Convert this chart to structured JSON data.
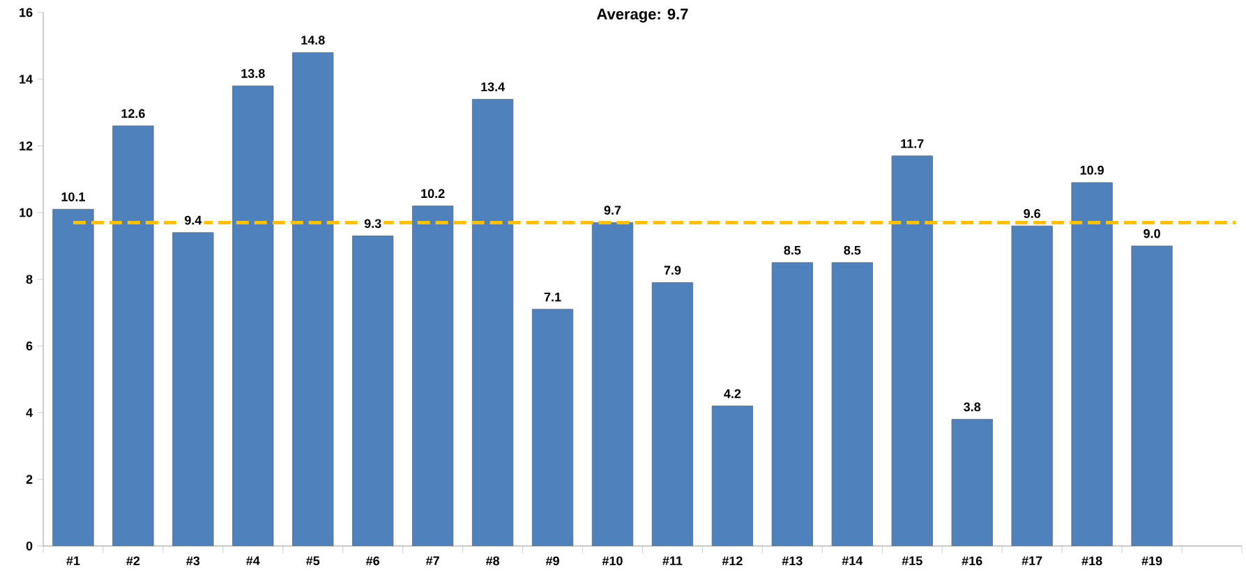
{
  "chart_data": {
    "type": "bar",
    "title": "Average: 9.7",
    "categories": [
      "#1",
      "#2",
      "#3",
      "#4",
      "#5",
      "#6",
      "#7",
      "#8",
      "#9",
      "#10",
      "#11",
      "#12",
      "#13",
      "#14",
      "#15",
      "#16",
      "#17",
      "#18",
      "#19",
      null
    ],
    "values": [
      10.1,
      12.6,
      9.4,
      13.8,
      14.8,
      9.3,
      10.2,
      13.4,
      7.1,
      9.7,
      7.9,
      4.2,
      8.5,
      8.5,
      11.7,
      3.8,
      9.6,
      10.9,
      9.0,
      null
    ],
    "value_labels": [
      "10.1",
      "12.6",
      "9.4",
      "13.8",
      "14.8",
      "9.3",
      "10.2",
      "13.4",
      "7.1",
      "9.7",
      "7.9",
      "4.2",
      "8.5",
      "8.5",
      "11.7",
      "3.8",
      "9.6",
      "10.9",
      "9.0",
      null
    ],
    "color": "#4f81bd",
    "ylim": [
      0,
      16
    ],
    "yticks": [
      0,
      2,
      4,
      6,
      8,
      10,
      12,
      14,
      16
    ],
    "grid": false,
    "ref_lines": [
      {
        "axis": "y",
        "value": 9.7,
        "color": "#ffc000",
        "line_style": "dashed"
      }
    ]
  }
}
